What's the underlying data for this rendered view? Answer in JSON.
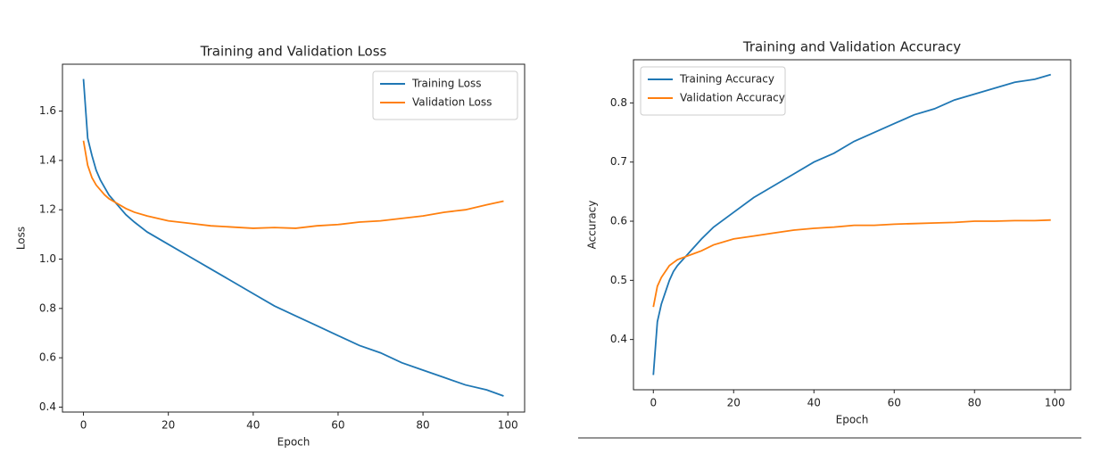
{
  "chart_data": [
    {
      "type": "line",
      "title": "Training and Validation Loss",
      "x_label": "Epoch",
      "y_label": "Loss",
      "x": [
        0,
        1,
        2,
        3,
        4,
        5,
        6,
        8,
        10,
        12,
        15,
        20,
        25,
        30,
        35,
        40,
        45,
        50,
        55,
        60,
        65,
        70,
        75,
        80,
        85,
        90,
        95,
        99
      ],
      "series": [
        {
          "name": "Training Loss",
          "color": "#1f77b4",
          "values": [
            1.73,
            1.49,
            1.42,
            1.36,
            1.32,
            1.29,
            1.26,
            1.22,
            1.18,
            1.15,
            1.11,
            1.06,
            1.01,
            0.96,
            0.91,
            0.86,
            0.81,
            0.77,
            0.73,
            0.69,
            0.65,
            0.62,
            0.58,
            0.55,
            0.52,
            0.49,
            0.47,
            0.445
          ]
        },
        {
          "name": "Validation Loss",
          "color": "#ff7f0e",
          "values": [
            1.48,
            1.38,
            1.33,
            1.3,
            1.28,
            1.26,
            1.245,
            1.225,
            1.205,
            1.19,
            1.175,
            1.155,
            1.145,
            1.135,
            1.13,
            1.125,
            1.128,
            1.125,
            1.135,
            1.14,
            1.15,
            1.155,
            1.165,
            1.175,
            1.19,
            1.2,
            1.22,
            1.235
          ]
        }
      ],
      "xlim": [
        -4.95,
        103.95
      ],
      "xticks": [
        0,
        20,
        40,
        60,
        80,
        100
      ],
      "ylim": [
        0.38,
        1.79
      ],
      "yticks": [
        0.4,
        0.6,
        0.8,
        {
          "value": 1,
          "label": "1.0"
        },
        1.2,
        1.4,
        1.6
      ],
      "legend": "upper right"
    },
    {
      "type": "line",
      "title": "Training and Validation Accuracy",
      "x_label": "Epoch",
      "y_label": "Accuracy",
      "x": [
        0,
        1,
        2,
        3,
        4,
        5,
        6,
        8,
        10,
        12,
        15,
        20,
        25,
        30,
        35,
        40,
        45,
        50,
        55,
        60,
        65,
        70,
        75,
        80,
        85,
        90,
        95,
        99
      ],
      "series": [
        {
          "name": "Training Accuracy",
          "color": "#1f77b4",
          "values": [
            0.34,
            0.43,
            0.46,
            0.48,
            0.5,
            0.515,
            0.525,
            0.54,
            0.555,
            0.57,
            0.59,
            0.615,
            0.64,
            0.66,
            0.68,
            0.7,
            0.715,
            0.735,
            0.75,
            0.765,
            0.78,
            0.79,
            0.805,
            0.815,
            0.825,
            0.835,
            0.84,
            0.848
          ]
        },
        {
          "name": "Validation Accuracy",
          "color": "#ff7f0e",
          "values": [
            0.455,
            0.49,
            0.505,
            0.515,
            0.525,
            0.53,
            0.535,
            0.54,
            0.545,
            0.55,
            0.56,
            0.57,
            0.575,
            0.58,
            0.585,
            0.588,
            0.59,
            0.593,
            0.593,
            0.595,
            0.596,
            0.597,
            0.598,
            0.6,
            0.6,
            0.601,
            0.601,
            0.602
          ]
        }
      ],
      "xlim": [
        -4.95,
        103.95
      ],
      "xticks": [
        0,
        20,
        40,
        60,
        80,
        100
      ],
      "ylim": [
        0.315,
        0.873
      ],
      "yticks": [
        0.4,
        0.5,
        0.6,
        0.7,
        0.8
      ],
      "legend": "upper left"
    }
  ]
}
